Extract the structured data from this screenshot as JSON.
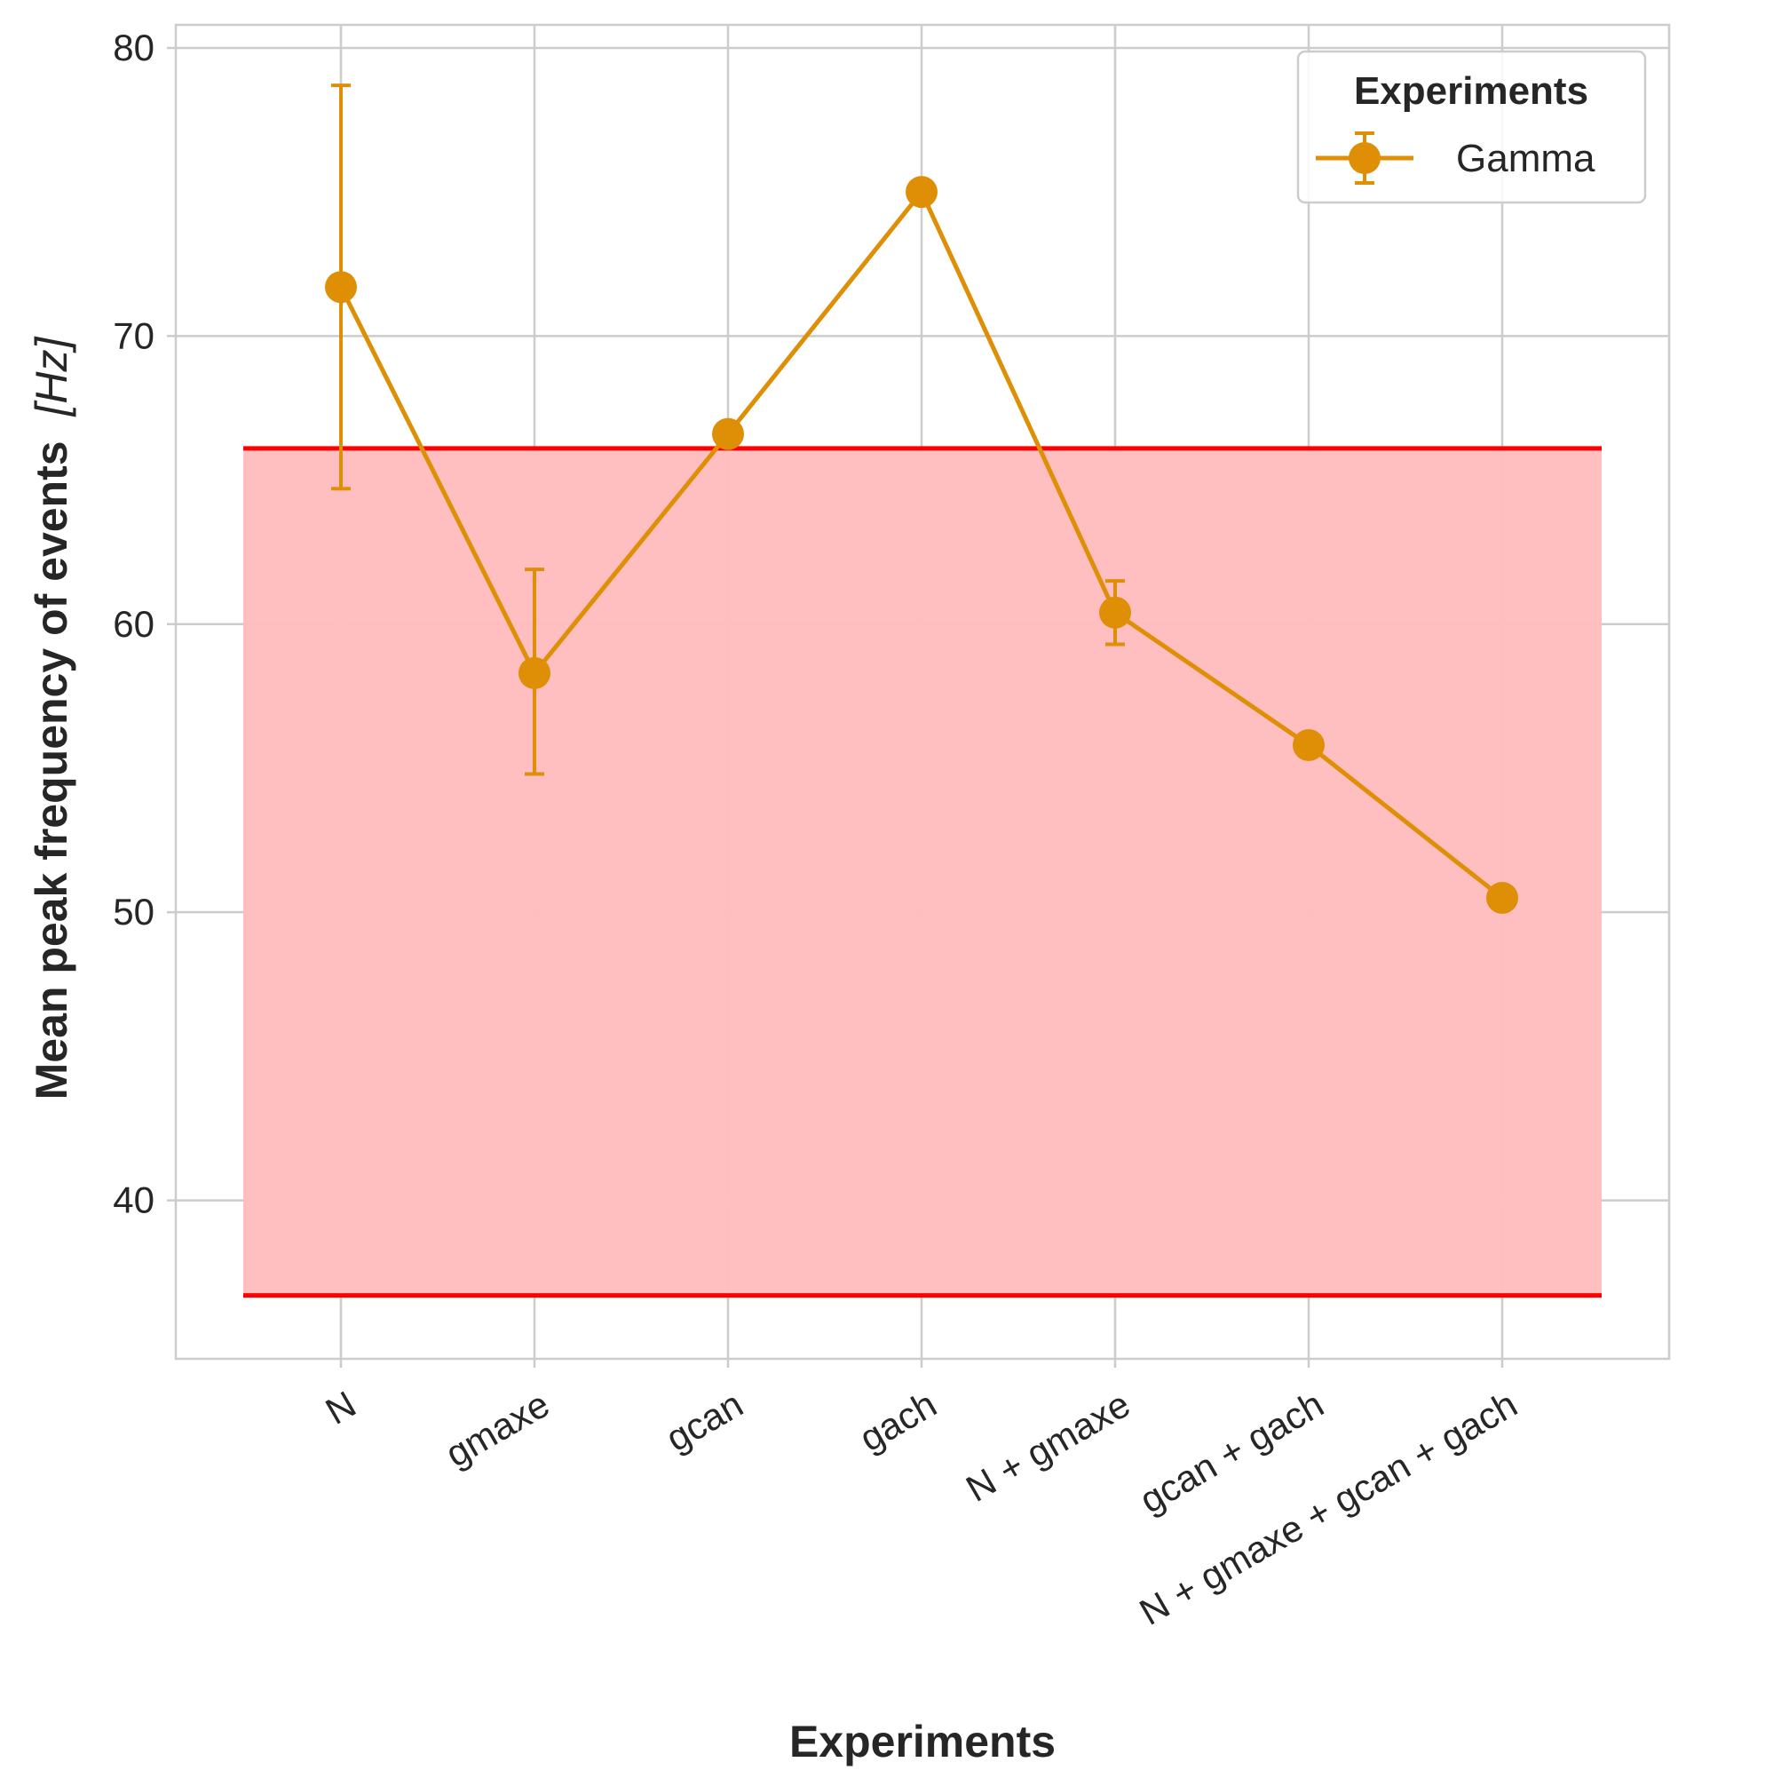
{
  "chart_data": {
    "type": "line",
    "xlabel": "Experiments",
    "ylabel": "Mean peak frequency of events",
    "ylabel_unit": "[Hz]",
    "ylim": [
      34.5,
      80.8
    ],
    "yticks": [
      40,
      50,
      60,
      70,
      80
    ],
    "categories": [
      "N",
      "gmaxe",
      "gcan",
      "gach",
      "N + gmaxe",
      "gcan + gach",
      "N + gmaxe + gcan + gach"
    ],
    "grid": true,
    "legend": {
      "title": "Experiments",
      "placement": "top-right"
    },
    "band": {
      "ymin": 36.7,
      "ymax": 66.1,
      "fill": "#ffbdbf",
      "edge": "#ff0000"
    },
    "series": [
      {
        "name": "Gamma",
        "color": "#de8f05",
        "values": [
          71.7,
          58.3,
          66.6,
          75.0,
          60.4,
          55.8,
          50.5
        ],
        "err_low": [
          64.7,
          54.8,
          null,
          null,
          59.3,
          null,
          null
        ],
        "err_high": [
          78.7,
          61.9,
          null,
          null,
          61.5,
          null,
          null
        ]
      }
    ]
  }
}
